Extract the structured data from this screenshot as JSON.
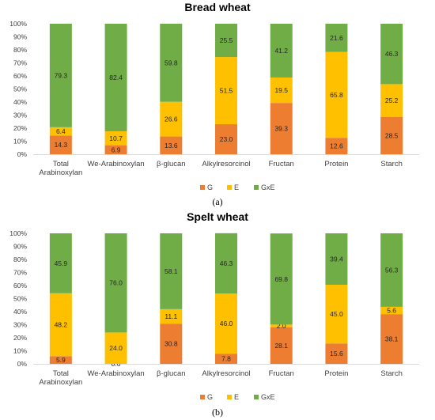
{
  "chart_data": [
    {
      "type": "bar",
      "stacked": true,
      "percent": true,
      "title": "Bread wheat",
      "caption": "(a)",
      "categories": [
        "Total Arabinoxylan",
        "We-Arabinoxylan",
        "β-glucan",
        "Alkylresorcinol",
        "Fructan",
        "Protein",
        "Starch"
      ],
      "series": [
        {
          "name": "G",
          "color": "#ED7D31",
          "values": [
            14.3,
            6.9,
            13.6,
            23.0,
            39.3,
            12.6,
            28.5
          ]
        },
        {
          "name": "E",
          "color": "#FFC000",
          "values": [
            6.4,
            10.7,
            26.6,
            51.5,
            19.5,
            65.8,
            25.2
          ]
        },
        {
          "name": "GxE",
          "color": "#70AD47",
          "values": [
            79.3,
            82.4,
            59.8,
            25.5,
            41.2,
            21.6,
            46.3
          ]
        }
      ],
      "yticks": [
        "0%",
        "10%",
        "20%",
        "30%",
        "40%",
        "50%",
        "60%",
        "70%",
        "80%",
        "90%",
        "100%"
      ],
      "ylim": [
        0,
        100
      ],
      "grid": false,
      "legend": "bottom"
    },
    {
      "type": "bar",
      "stacked": true,
      "percent": true,
      "title": "Spelt wheat",
      "caption": "(b)",
      "categories": [
        "Total Arabinoxylan",
        "We-Arabinoxylan",
        "β-glucan",
        "Alkylresorcinol",
        "Fructan",
        "Protein",
        "Starch"
      ],
      "series": [
        {
          "name": "G",
          "color": "#ED7D31",
          "values": [
            5.9,
            0.0,
            30.8,
            7.8,
            28.1,
            15.6,
            38.1
          ]
        },
        {
          "name": "E",
          "color": "#FFC000",
          "values": [
            48.2,
            24.0,
            11.1,
            46.0,
            2.0,
            45.0,
            5.6
          ]
        },
        {
          "name": "GxE",
          "color": "#70AD47",
          "values": [
            45.9,
            76.0,
            58.1,
            46.3,
            69.8,
            39.4,
            56.3
          ]
        }
      ],
      "yticks": [
        "0%",
        "10%",
        "20%",
        "30%",
        "40%",
        "50%",
        "60%",
        "70%",
        "80%",
        "90%",
        "100%"
      ],
      "ylim": [
        0,
        100
      ],
      "grid": false,
      "legend": "bottom"
    }
  ]
}
